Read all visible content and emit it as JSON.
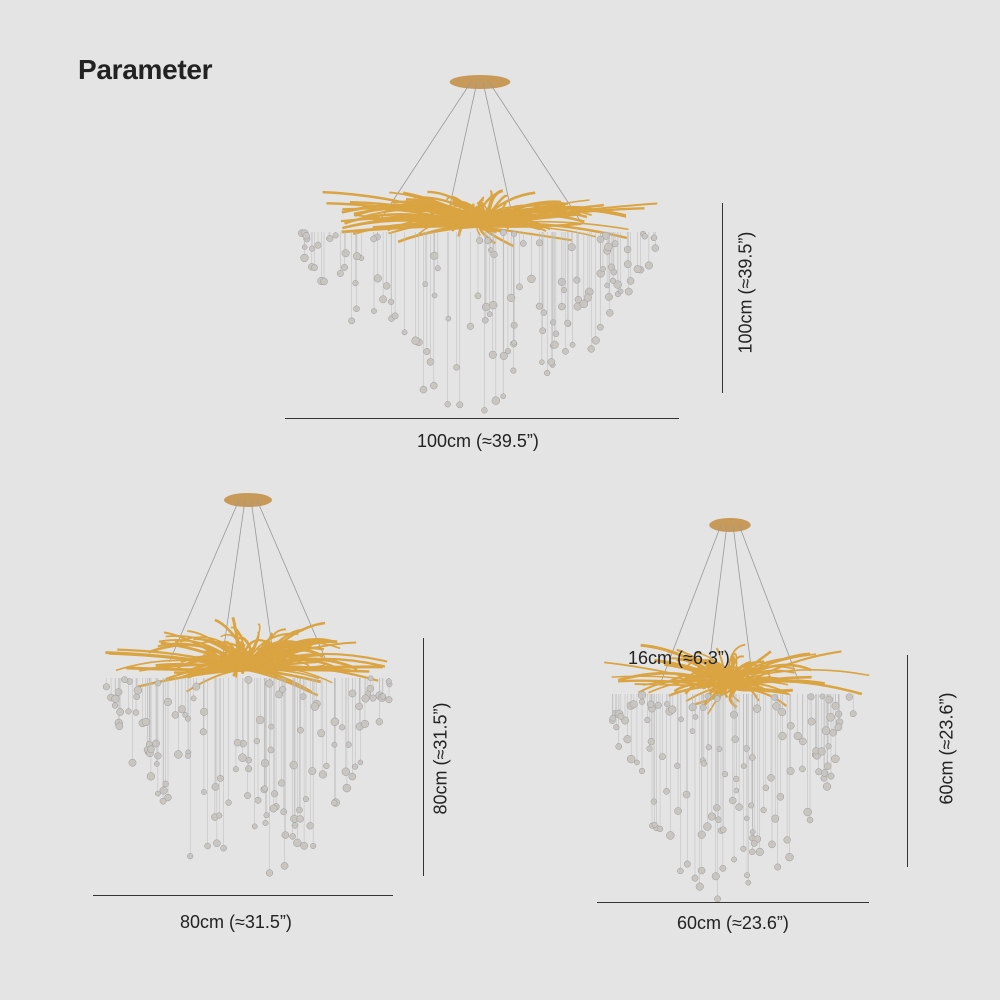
{
  "title": "Parameter",
  "products": [
    {
      "width_label": "100cm (≈39.5”)",
      "height_label": "100cm (≈39.5”)"
    },
    {
      "width_label": "80cm (≈31.5”)",
      "height_label": "80cm (≈31.5”)"
    },
    {
      "width_label": "60cm (≈23.6”)",
      "height_label": "60cm (≈23.6”)",
      "extra_label": "16cm (≈6.3”)"
    }
  ],
  "colors": {
    "background": "#e4e4e4",
    "gold": "#d9a441",
    "crystal": "#c9c6c2"
  }
}
